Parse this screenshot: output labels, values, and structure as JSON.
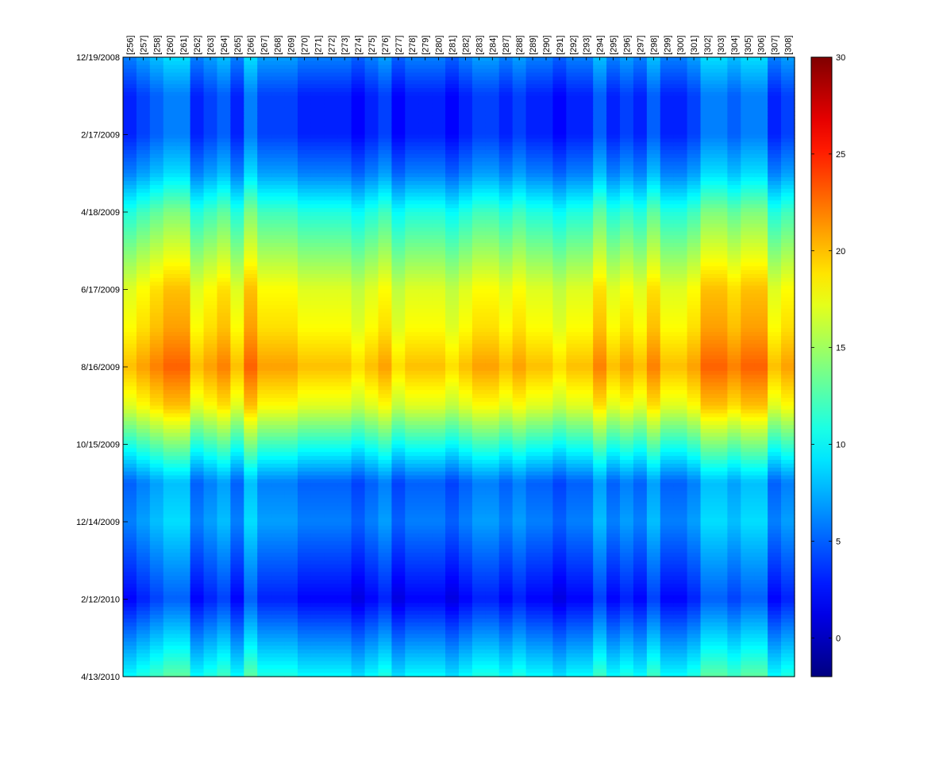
{
  "chart_data": {
    "type": "heatmap",
    "title": "",
    "xlabel": "",
    "ylabel": "",
    "columns": [
      "[256]",
      "[257]",
      "[258]",
      "[260]",
      "[261]",
      "[262]",
      "[263]",
      "[264]",
      "[265]",
      "[266]",
      "[267]",
      "[268]",
      "[269]",
      "[270]",
      "[271]",
      "[272]",
      "[273]",
      "[274]",
      "[275]",
      "[276]",
      "[277]",
      "[278]",
      "[279]",
      "[280]",
      "[281]",
      "[282]",
      "[283]",
      "[284]",
      "[287]",
      "[288]",
      "[289]",
      "[290]",
      "[291]",
      "[292]",
      "[293]",
      "[294]",
      "[295]",
      "[296]",
      "[297]",
      "[298]",
      "[299]",
      "[300]",
      "[301]",
      "[302]",
      "[303]",
      "[304]",
      "[305]",
      "[306]",
      "[307]",
      "[308]"
    ],
    "y_range": [
      "12/19/2008",
      "4/13/2010"
    ],
    "y_ticks": [
      "12/19/2008",
      "2/17/2009",
      "4/18/2009",
      "6/17/2009",
      "8/16/2009",
      "10/15/2009",
      "12/14/2009",
      "2/12/2010",
      "4/13/2010"
    ],
    "colorbar": {
      "colormap": "jet",
      "range": [
        -2,
        30
      ],
      "ticks": [
        0,
        5,
        10,
        15,
        20,
        25,
        30
      ]
    },
    "profile": {
      "description": "approximate average value by date (all columns)",
      "dates": [
        "12/19/2008",
        "1/18/2009",
        "2/17/2009",
        "3/19/2009",
        "4/18/2009",
        "5/18/2009",
        "6/17/2009",
        "7/17/2009",
        "8/16/2009",
        "9/15/2009",
        "10/15/2009",
        "11/14/2009",
        "12/14/2009",
        "1/13/2010",
        "2/12/2010",
        "3/14/2010",
        "4/13/2010"
      ],
      "values": [
        6,
        3,
        3,
        6,
        11,
        14,
        17,
        18,
        20,
        17,
        11,
        5,
        6,
        4,
        2,
        6,
        10
      ]
    },
    "column_offsets": {
      "description": "approximate per-column deviation from the average profile",
      "values": [
        0,
        1,
        2,
        3,
        3,
        0,
        1,
        2,
        0,
        3,
        1,
        1,
        1,
        0,
        0,
        0,
        0,
        -1,
        0,
        1,
        -1,
        0,
        0,
        0,
        -1,
        0,
        1,
        1,
        0,
        1,
        0,
        0,
        -1,
        0,
        0,
        2,
        0,
        1,
        0,
        2,
        0,
        0,
        1,
        3,
        3,
        2,
        3,
        3,
        0,
        1
      ]
    }
  }
}
